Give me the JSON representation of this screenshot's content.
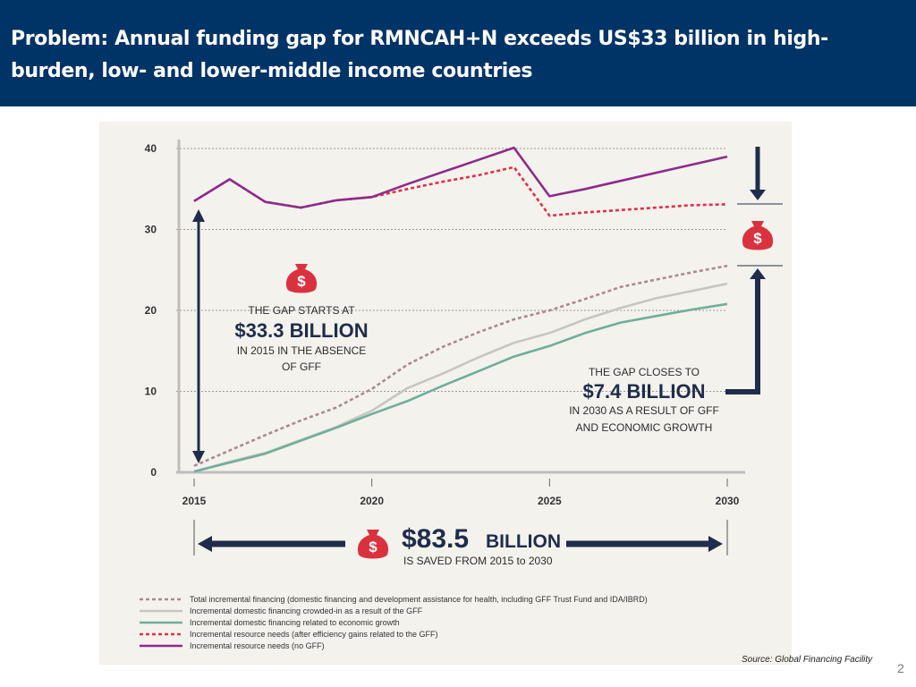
{
  "header": {
    "title": "Problem:  Annual funding gap for RMNCAH+N exceeds US$33 billion in high-burden, low- and lower-middle income countries"
  },
  "chart_data": {
    "type": "line",
    "x": [
      2015,
      2016,
      2017,
      2018,
      2019,
      2020,
      2021,
      2022,
      2023,
      2024,
      2025,
      2026,
      2027,
      2028,
      2029,
      2030
    ],
    "xticks": [
      "2015",
      "2020",
      "2025",
      "2030"
    ],
    "yticks": [
      "0",
      "10",
      "20",
      "30",
      "40"
    ],
    "xlim": [
      2015,
      2030
    ],
    "ylim": [
      0,
      40
    ],
    "grid": true,
    "legend_position": "bottom",
    "series": [
      {
        "name": "Total incremental financing (domestic financing and development assistance for health, including GFF Trust Fund and IDA/IBRD)",
        "style": "dotted",
        "color": "#a98a8f",
        "values": [
          0.8,
          2.7,
          4.6,
          6.4,
          8.0,
          10.3,
          13.3,
          15.5,
          17.3,
          18.9,
          20.0,
          21.4,
          22.9,
          23.8,
          24.7,
          25.5
        ]
      },
      {
        "name": "Incremental domestic financing crowded-in as a result of the GFF",
        "style": "solid",
        "color": "#c5c6c2",
        "values": [
          0.1,
          1.3,
          2.4,
          4.0,
          5.6,
          7.6,
          10.4,
          12.2,
          14.2,
          16.0,
          17.2,
          18.9,
          20.3,
          21.5,
          22.4,
          23.3
        ]
      },
      {
        "name": "Incremental domestic financing related to economic growth",
        "style": "solid",
        "color": "#6fae9b",
        "values": [
          0.1,
          1.2,
          2.3,
          3.9,
          5.5,
          7.2,
          8.8,
          10.7,
          12.5,
          14.3,
          15.6,
          17.2,
          18.5,
          19.3,
          20.1,
          20.8
        ]
      },
      {
        "name": "Incremental resource needs (after efficiency gains related to the GFF)",
        "style": "dotted",
        "color": "#e0314a",
        "values": [
          33.5,
          36.2,
          33.4,
          32.7,
          33.6,
          34.0,
          35.0,
          35.9,
          36.7,
          37.7,
          31.7,
          32.1,
          32.4,
          32.7,
          33.0,
          33.1
        ]
      },
      {
        "name": "Incremental resource needs (no GFF)",
        "style": "solid",
        "color": "#8e2a8c",
        "values": [
          33.5,
          36.2,
          33.4,
          32.7,
          33.6,
          34.0,
          35.6,
          37.1,
          38.6,
          40.1,
          34.1,
          35.0,
          36.0,
          37.0,
          38.0,
          39.0
        ]
      }
    ],
    "annotations": {
      "gap_start": {
        "line1": "THE GAP STARTS AT",
        "line2": "$33.3 BILLION",
        "line3": "IN 2015 IN THE ABSENCE",
        "line4": "OF GFF"
      },
      "gap_close": {
        "line1": "THE GAP CLOSES TO",
        "line2": "$7.4 BILLION",
        "line3": "IN 2030 AS A RESULT OF GFF",
        "line4": "AND ECONOMIC GROWTH"
      },
      "saved": {
        "amount": "$83.5",
        "unit": "BILLION",
        "line2": "IS SAVED FROM  2015 to 2030"
      }
    },
    "colors": {
      "panel": "#f4f2ed",
      "navy": "#1f2d4b",
      "icon_red": "#d9323e",
      "axis": "#bdbdbd"
    }
  },
  "footer": {
    "source": "Source: Global Financing Facility",
    "page_number": "2"
  }
}
